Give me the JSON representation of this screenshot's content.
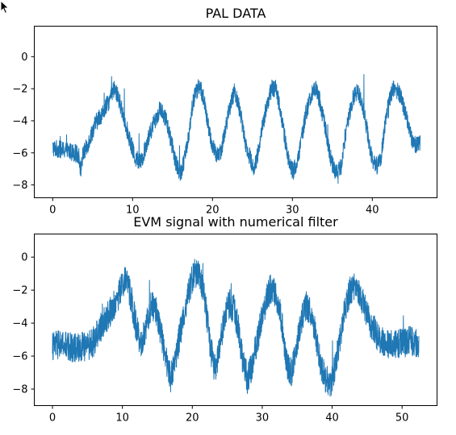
{
  "chart_data": [
    {
      "type": "line",
      "title": "PAL DATA",
      "xlabel": "",
      "ylabel": "",
      "xlim": [
        -2.3,
        48.1
      ],
      "ylim": [
        -8.8,
        1.9
      ],
      "xticks": [
        0,
        10,
        20,
        30,
        40
      ],
      "yticks": [
        0,
        -2,
        -4,
        -6,
        -8
      ],
      "grid": false,
      "legend": "none",
      "color": "#1f77b4",
      "noise_amplitude": 0.55,
      "series": [
        {
          "x": [
            0,
            1,
            2,
            2.8,
            3.3,
            3.5,
            3.8,
            4.3,
            4.8,
            5.3,
            5.8,
            6.3,
            6.8,
            7.3,
            7.7,
            8.2,
            8.8,
            9.5,
            10.3,
            11.1,
            11.8,
            12.6,
            13.4,
            14.1,
            14.8,
            15.4,
            16.0,
            16.6,
            17.1,
            17.5,
            17.9,
            18.4,
            18.9,
            19.4,
            20.0,
            20.5,
            21.1,
            21.7,
            22.2,
            22.7,
            23.2,
            23.7,
            24.2,
            24.7,
            25.2,
            25.7,
            26.2,
            26.8,
            27.4,
            27.9,
            28.4,
            28.9,
            29.5,
            30.1,
            30.7,
            31.2,
            31.7,
            32.3,
            32.9,
            33.4,
            33.9,
            34.4,
            34.9,
            35.5,
            36.1,
            36.6,
            37.1,
            37.6,
            38.1,
            38.6,
            39.1,
            39.6,
            40.1,
            40.6,
            41.1,
            41.6,
            42.1,
            42.6,
            43.1,
            43.6,
            44.1,
            44.6,
            45.0,
            45.5,
            46.0
          ],
          "y": [
            -5.7,
            -5.8,
            -5.9,
            -6.0,
            -6.2,
            -7.1,
            -6.1,
            -5.6,
            -4.9,
            -4.2,
            -3.8,
            -3.5,
            -3.0,
            -2.5,
            -2.0,
            -2.5,
            -3.6,
            -4.9,
            -6.3,
            -6.6,
            -5.3,
            -4.2,
            -3.3,
            -3.8,
            -5.2,
            -6.6,
            -7.3,
            -6.2,
            -4.6,
            -3.0,
            -2.2,
            -1.8,
            -2.6,
            -4.2,
            -5.6,
            -6.2,
            -5.8,
            -4.3,
            -3.2,
            -2.2,
            -2.8,
            -4.1,
            -5.5,
            -6.3,
            -7.0,
            -6.0,
            -4.5,
            -3.0,
            -2.0,
            -2.0,
            -3.0,
            -4.6,
            -6.4,
            -7.2,
            -6.4,
            -5.0,
            -3.5,
            -2.5,
            -2.0,
            -2.7,
            -3.9,
            -5.2,
            -6.6,
            -7.3,
            -6.8,
            -5.0,
            -3.7,
            -2.6,
            -2.2,
            -2.6,
            -3.8,
            -5.4,
            -6.6,
            -6.8,
            -6.2,
            -4.2,
            -2.7,
            -2.0,
            -2.1,
            -2.6,
            -3.4,
            -4.4,
            -5.3,
            -5.5,
            -5.4
          ]
        }
      ]
    },
    {
      "type": "line",
      "title": "EVM signal with numerical filter",
      "xlabel": "",
      "ylabel": "",
      "xlim": [
        -2.6,
        55.0
      ],
      "ylim": [
        -9.0,
        1.4
      ],
      "xticks": [
        0,
        10,
        20,
        30,
        40,
        50
      ],
      "yticks": [
        0,
        -2,
        -4,
        -6,
        -8
      ],
      "grid": false,
      "legend": "none",
      "color": "#1f77b4",
      "noise_amplitude": 0.9,
      "series": [
        {
          "x": [
            0,
            1,
            2,
            3,
            4,
            5,
            5.8,
            6.5,
            7.2,
            8.0,
            8.7,
            9.4,
            10.0,
            10.6,
            11.3,
            12.0,
            12.7,
            13.4,
            14.1,
            14.8,
            15.5,
            16.2,
            16.9,
            17.6,
            18.3,
            19.0,
            19.6,
            20.2,
            20.8,
            21.4,
            22.0,
            22.6,
            23.2,
            23.9,
            24.6,
            25.3,
            26.0,
            26.6,
            27.2,
            27.9,
            28.6,
            29.3,
            30.0,
            30.7,
            31.4,
            32.1,
            32.8,
            33.5,
            34.2,
            34.9,
            35.6,
            36.3,
            37.0,
            37.7,
            38.4,
            39.1,
            39.8,
            40.5,
            41.2,
            41.9,
            42.6,
            43.3,
            44.0,
            44.7,
            45.4,
            46.1,
            46.8,
            47.5,
            48.2,
            48.9,
            49.6,
            50.3,
            51.0,
            51.7,
            52.4
          ],
          "y": [
            -5.4,
            -5.3,
            -5.4,
            -5.5,
            -5.4,
            -5.4,
            -5.2,
            -4.6,
            -4.0,
            -3.5,
            -3.0,
            -2.4,
            -1.6,
            -1.4,
            -2.6,
            -4.3,
            -5.4,
            -4.2,
            -2.9,
            -3.3,
            -4.5,
            -6.1,
            -7.3,
            -6.2,
            -4.5,
            -3.0,
            -1.9,
            -1.0,
            -0.9,
            -1.6,
            -3.3,
            -5.5,
            -6.8,
            -5.6,
            -3.6,
            -2.8,
            -3.2,
            -4.4,
            -6.2,
            -7.4,
            -6.5,
            -5.0,
            -3.6,
            -2.3,
            -1.8,
            -2.5,
            -4.0,
            -6.4,
            -7.0,
            -5.5,
            -3.8,
            -2.9,
            -3.4,
            -4.8,
            -6.5,
            -7.4,
            -7.7,
            -6.4,
            -4.8,
            -3.0,
            -2.0,
            -1.7,
            -2.2,
            -3.1,
            -3.9,
            -4.5,
            -5.0,
            -5.2,
            -5.3,
            -5.3,
            -5.2,
            -5.2,
            -5.1,
            -5.1,
            -5.2
          ]
        }
      ]
    }
  ]
}
